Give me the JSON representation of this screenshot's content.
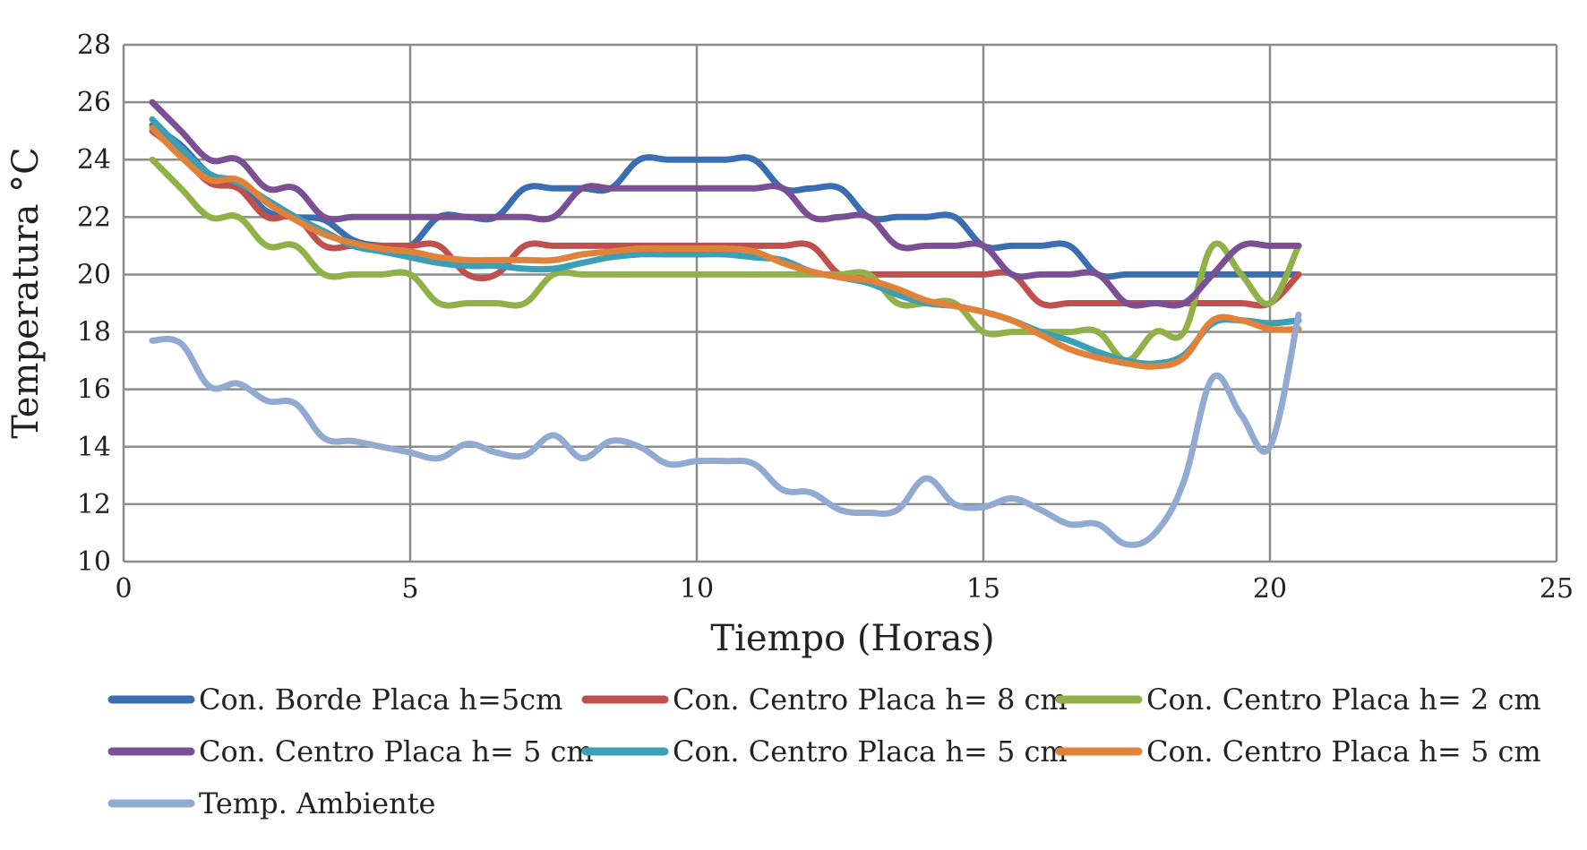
{
  "chart_data": {
    "type": "line",
    "xlabel": "Tiempo (Horas)",
    "ylabel": "Temperatura °C",
    "xlim": [
      0,
      25
    ],
    "ylim": [
      10,
      28
    ],
    "xticks": [
      "0",
      "5",
      "10",
      "15",
      "20",
      "25"
    ],
    "yticks": [
      "10",
      "12",
      "14",
      "16",
      "18",
      "20",
      "22",
      "24",
      "26",
      "28"
    ],
    "grid": true,
    "legend_position": "bottom",
    "series": [
      {
        "name": "Con. Borde Placa h=5cm",
        "color": "#3a6eb0",
        "points": [
          [
            0.5,
            25.2
          ],
          [
            1,
            24.5
          ],
          [
            1.5,
            23.5
          ],
          [
            2,
            23.2
          ],
          [
            2.5,
            22.2
          ],
          [
            3,
            22
          ],
          [
            3.5,
            21.9
          ],
          [
            4,
            21.2
          ],
          [
            4.5,
            21
          ],
          [
            5,
            21
          ],
          [
            5.5,
            22
          ],
          [
            6,
            22
          ],
          [
            6.5,
            22
          ],
          [
            7,
            23
          ],
          [
            7.5,
            23
          ],
          [
            8,
            23
          ],
          [
            8.5,
            23
          ],
          [
            9,
            24
          ],
          [
            9.5,
            24
          ],
          [
            10,
            24
          ],
          [
            10.5,
            24
          ],
          [
            11,
            24
          ],
          [
            11.5,
            23
          ],
          [
            12,
            23
          ],
          [
            12.5,
            23
          ],
          [
            13,
            22
          ],
          [
            13.5,
            22
          ],
          [
            14,
            22
          ],
          [
            14.5,
            22
          ],
          [
            15,
            21
          ],
          [
            15.5,
            21
          ],
          [
            16,
            21
          ],
          [
            16.5,
            21
          ],
          [
            17,
            20
          ],
          [
            17.5,
            20
          ],
          [
            18,
            20
          ],
          [
            18.5,
            20
          ],
          [
            19,
            20
          ],
          [
            19.5,
            20
          ],
          [
            20,
            20
          ],
          [
            20.5,
            20
          ]
        ]
      },
      {
        "name": "Con. Centro Placa h= 8 cm",
        "color": "#c0504d",
        "points": [
          [
            0.5,
            25
          ],
          [
            1,
            24.2
          ],
          [
            1.5,
            23.2
          ],
          [
            2,
            23
          ],
          [
            2.5,
            22
          ],
          [
            3,
            22
          ],
          [
            3.5,
            21
          ],
          [
            4,
            21
          ],
          [
            4.5,
            21
          ],
          [
            5,
            21
          ],
          [
            5.5,
            21
          ],
          [
            6,
            20
          ],
          [
            6.5,
            20
          ],
          [
            7,
            21
          ],
          [
            7.5,
            21
          ],
          [
            8,
            21
          ],
          [
            8.5,
            21
          ],
          [
            9,
            21
          ],
          [
            9.5,
            21
          ],
          [
            10,
            21
          ],
          [
            10.5,
            21
          ],
          [
            11,
            21
          ],
          [
            11.5,
            21
          ],
          [
            12,
            21
          ],
          [
            12.5,
            20
          ],
          [
            13,
            20
          ],
          [
            13.5,
            20
          ],
          [
            14,
            20
          ],
          [
            14.5,
            20
          ],
          [
            15,
            20
          ],
          [
            15.5,
            20
          ],
          [
            16,
            19
          ],
          [
            16.5,
            19
          ],
          [
            17,
            19
          ],
          [
            17.5,
            19
          ],
          [
            18,
            19
          ],
          [
            18.5,
            19
          ],
          [
            19,
            19
          ],
          [
            19.5,
            19
          ],
          [
            20,
            19
          ],
          [
            20.5,
            20
          ]
        ]
      },
      {
        "name": "Con. Centro Placa h= 2 cm",
        "color": "#8fb147",
        "points": [
          [
            0.5,
            24
          ],
          [
            1,
            23
          ],
          [
            1.5,
            22
          ],
          [
            2,
            22
          ],
          [
            2.5,
            21
          ],
          [
            3,
            21
          ],
          [
            3.5,
            20
          ],
          [
            4,
            20
          ],
          [
            4.5,
            20
          ],
          [
            5,
            20
          ],
          [
            5.5,
            19
          ],
          [
            6,
            19
          ],
          [
            6.5,
            19
          ],
          [
            7,
            19
          ],
          [
            7.5,
            20
          ],
          [
            8,
            20
          ],
          [
            8.5,
            20
          ],
          [
            9,
            20
          ],
          [
            9.5,
            20
          ],
          [
            10,
            20
          ],
          [
            10.5,
            20
          ],
          [
            11,
            20
          ],
          [
            11.5,
            20
          ],
          [
            12,
            20
          ],
          [
            12.5,
            20
          ],
          [
            13,
            20
          ],
          [
            13.5,
            19
          ],
          [
            14,
            19
          ],
          [
            14.5,
            19
          ],
          [
            15,
            18
          ],
          [
            15.5,
            18
          ],
          [
            16,
            18
          ],
          [
            16.5,
            18
          ],
          [
            17,
            18
          ],
          [
            17.5,
            17
          ],
          [
            18,
            18
          ],
          [
            18.5,
            18
          ],
          [
            19,
            21
          ],
          [
            19.5,
            20
          ],
          [
            20,
            19
          ],
          [
            20.5,
            21
          ]
        ]
      },
      {
        "name": "Con. Centro Placa h= 5 cm",
        "color": "#7a4f96",
        "points": [
          [
            0.5,
            26
          ],
          [
            1,
            25
          ],
          [
            1.5,
            24
          ],
          [
            2,
            24
          ],
          [
            2.5,
            23
          ],
          [
            3,
            23
          ],
          [
            3.5,
            22
          ],
          [
            4,
            22
          ],
          [
            4.5,
            22
          ],
          [
            5,
            22
          ],
          [
            5.5,
            22
          ],
          [
            6,
            22
          ],
          [
            6.5,
            22
          ],
          [
            7,
            22
          ],
          [
            7.5,
            22
          ],
          [
            8,
            23
          ],
          [
            8.5,
            23
          ],
          [
            9,
            23
          ],
          [
            9.5,
            23
          ],
          [
            10,
            23
          ],
          [
            10.5,
            23
          ],
          [
            11,
            23
          ],
          [
            11.5,
            23
          ],
          [
            12,
            22
          ],
          [
            12.5,
            22
          ],
          [
            13,
            22
          ],
          [
            13.5,
            21
          ],
          [
            14,
            21
          ],
          [
            14.5,
            21
          ],
          [
            15,
            21
          ],
          [
            15.5,
            20
          ],
          [
            16,
            20
          ],
          [
            16.5,
            20
          ],
          [
            17,
            20
          ],
          [
            17.5,
            19
          ],
          [
            18,
            19
          ],
          [
            18.5,
            19
          ],
          [
            19,
            20
          ],
          [
            19.5,
            21
          ],
          [
            20,
            21
          ],
          [
            20.5,
            21
          ]
        ]
      },
      {
        "name": "Con. Centro Placa h= 5 cm",
        "color": "#3b9fb5",
        "points": [
          [
            0.5,
            25.4
          ],
          [
            1,
            24.4
          ],
          [
            1.5,
            23.5
          ],
          [
            2,
            23.2
          ],
          [
            2.5,
            22.6
          ],
          [
            3,
            22
          ],
          [
            3.5,
            21.5
          ],
          [
            4,
            21
          ],
          [
            4.5,
            20.8
          ],
          [
            5,
            20.6
          ],
          [
            5.5,
            20.4
          ],
          [
            6,
            20.3
          ],
          [
            6.5,
            20.3
          ],
          [
            7,
            20.2
          ],
          [
            7.5,
            20.2
          ],
          [
            8,
            20.4
          ],
          [
            8.5,
            20.6
          ],
          [
            9,
            20.7
          ],
          [
            9.5,
            20.7
          ],
          [
            10,
            20.7
          ],
          [
            10.5,
            20.7
          ],
          [
            11,
            20.6
          ],
          [
            11.5,
            20.5
          ],
          [
            12,
            20.1
          ],
          [
            12.5,
            19.9
          ],
          [
            13,
            19.7
          ],
          [
            13.5,
            19.3
          ],
          [
            14,
            19
          ],
          [
            14.5,
            18.9
          ],
          [
            15,
            18.7
          ],
          [
            15.5,
            18.4
          ],
          [
            16,
            18
          ],
          [
            16.5,
            17.7
          ],
          [
            17,
            17.3
          ],
          [
            17.5,
            17
          ],
          [
            18,
            16.9
          ],
          [
            18.5,
            17.2
          ],
          [
            19,
            18.3
          ],
          [
            19.5,
            18.4
          ],
          [
            20,
            18.3
          ],
          [
            20.5,
            18.4
          ]
        ]
      },
      {
        "name": "Con. Centro Placa h= 5 cm",
        "color": "#e1823a",
        "points": [
          [
            0.5,
            25.1
          ],
          [
            1,
            24.1
          ],
          [
            1.5,
            23.3
          ],
          [
            2,
            23.3
          ],
          [
            2.5,
            22.5
          ],
          [
            3,
            21.9
          ],
          [
            3.5,
            21.4
          ],
          [
            4,
            21.1
          ],
          [
            4.5,
            20.9
          ],
          [
            5,
            20.8
          ],
          [
            5.5,
            20.6
          ],
          [
            6,
            20.5
          ],
          [
            6.5,
            20.5
          ],
          [
            7,
            20.5
          ],
          [
            7.5,
            20.5
          ],
          [
            8,
            20.7
          ],
          [
            8.5,
            20.8
          ],
          [
            9,
            20.9
          ],
          [
            9.5,
            20.9
          ],
          [
            10,
            20.9
          ],
          [
            10.5,
            20.9
          ],
          [
            11,
            20.8
          ],
          [
            11.5,
            20.4
          ],
          [
            12,
            20.1
          ],
          [
            12.5,
            19.9
          ],
          [
            13,
            19.8
          ],
          [
            13.5,
            19.5
          ],
          [
            14,
            19.1
          ],
          [
            14.5,
            18.9
          ],
          [
            15,
            18.7
          ],
          [
            15.5,
            18.4
          ],
          [
            16,
            17.9
          ],
          [
            16.5,
            17.4
          ],
          [
            17,
            17.1
          ],
          [
            17.5,
            16.9
          ],
          [
            18,
            16.8
          ],
          [
            18.5,
            17.1
          ],
          [
            19,
            18.4
          ],
          [
            19.5,
            18.4
          ],
          [
            20,
            18.1
          ],
          [
            20.5,
            18.1
          ]
        ]
      },
      {
        "name": "Temp. Ambiente",
        "color": "#92a9d2",
        "points": [
          [
            0.5,
            17.7
          ],
          [
            1,
            17.6
          ],
          [
            1.5,
            16.1
          ],
          [
            2,
            16.2
          ],
          [
            2.5,
            15.6
          ],
          [
            3,
            15.5
          ],
          [
            3.5,
            14.3
          ],
          [
            4,
            14.2
          ],
          [
            4.5,
            14
          ],
          [
            5,
            13.8
          ],
          [
            5.5,
            13.6
          ],
          [
            6,
            14.1
          ],
          [
            6.5,
            13.8
          ],
          [
            7,
            13.7
          ],
          [
            7.5,
            14.4
          ],
          [
            8,
            13.6
          ],
          [
            8.5,
            14.2
          ],
          [
            9,
            14
          ],
          [
            9.5,
            13.4
          ],
          [
            10,
            13.5
          ],
          [
            10.5,
            13.5
          ],
          [
            11,
            13.4
          ],
          [
            11.5,
            12.5
          ],
          [
            12,
            12.4
          ],
          [
            12.5,
            11.8
          ],
          [
            13,
            11.7
          ],
          [
            13.5,
            11.8
          ],
          [
            14,
            12.9
          ],
          [
            14.5,
            12
          ],
          [
            15,
            11.9
          ],
          [
            15.5,
            12.2
          ],
          [
            16,
            11.8
          ],
          [
            16.5,
            11.3
          ],
          [
            17,
            11.3
          ],
          [
            17.5,
            10.6
          ],
          [
            18,
            11
          ],
          [
            18.5,
            12.8
          ],
          [
            19,
            16.4
          ],
          [
            19.5,
            15.1
          ],
          [
            20,
            14
          ],
          [
            20.5,
            18.6
          ]
        ]
      }
    ]
  }
}
